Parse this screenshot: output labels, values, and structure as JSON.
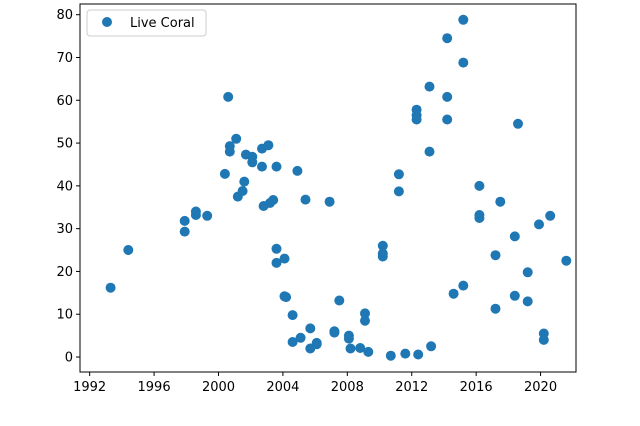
{
  "chart_data": {
    "type": "scatter",
    "title": "",
    "xlabel": "",
    "ylabel": "",
    "xlim": [
      1991.4,
      2022.2
    ],
    "ylim": [
      -3.5,
      82.5
    ],
    "x_ticks": [
      1992,
      1996,
      2000,
      2004,
      2008,
      2012,
      2016,
      2020
    ],
    "y_ticks": [
      0,
      10,
      20,
      30,
      40,
      50,
      60,
      70,
      80
    ],
    "grid": false,
    "legend_position": "top-left",
    "marker_color": "#1f77b4",
    "series": [
      {
        "name": "Live Coral",
        "points": [
          [
            1993.3,
            16.2
          ],
          [
            1994.4,
            25.0
          ],
          [
            1997.9,
            31.8
          ],
          [
            1997.9,
            29.3
          ],
          [
            1998.6,
            34.0
          ],
          [
            1998.6,
            33.2
          ],
          [
            1999.3,
            33.0
          ],
          [
            2000.4,
            42.8
          ],
          [
            2000.6,
            60.8
          ],
          [
            2000.7,
            48.0
          ],
          [
            2000.7,
            49.3
          ],
          [
            2001.1,
            51.0
          ],
          [
            2001.2,
            37.5
          ],
          [
            2001.5,
            38.8
          ],
          [
            2001.6,
            41.0
          ],
          [
            2001.7,
            47.3
          ],
          [
            2002.1,
            46.8
          ],
          [
            2002.1,
            45.5
          ],
          [
            2002.7,
            48.7
          ],
          [
            2002.7,
            44.5
          ],
          [
            2002.8,
            35.3
          ],
          [
            2003.1,
            49.5
          ],
          [
            2003.2,
            36.0
          ],
          [
            2003.4,
            36.7
          ],
          [
            2003.6,
            44.5
          ],
          [
            2003.6,
            25.3
          ],
          [
            2003.6,
            22.0
          ],
          [
            2004.1,
            23.0
          ],
          [
            2004.1,
            14.2
          ],
          [
            2004.2,
            14.0
          ],
          [
            2004.6,
            9.8
          ],
          [
            2004.6,
            3.5
          ],
          [
            2004.9,
            43.5
          ],
          [
            2005.1,
            4.5
          ],
          [
            2005.4,
            36.8
          ],
          [
            2005.7,
            6.7
          ],
          [
            2005.7,
            2.0
          ],
          [
            2006.1,
            3.3
          ],
          [
            2006.1,
            3.0
          ],
          [
            2006.9,
            36.3
          ],
          [
            2007.2,
            6.0
          ],
          [
            2007.2,
            5.7
          ],
          [
            2007.5,
            13.2
          ],
          [
            2008.1,
            5.0
          ],
          [
            2008.1,
            4.3
          ],
          [
            2008.2,
            2.0
          ],
          [
            2008.8,
            2.1
          ],
          [
            2009.1,
            10.2
          ],
          [
            2009.1,
            8.5
          ],
          [
            2009.3,
            1.2
          ],
          [
            2010.2,
            26.0
          ],
          [
            2010.2,
            24.2
          ],
          [
            2010.2,
            23.5
          ],
          [
            2010.7,
            0.3
          ],
          [
            2011.2,
            42.7
          ],
          [
            2011.2,
            38.7
          ],
          [
            2011.6,
            0.8
          ],
          [
            2012.3,
            57.8
          ],
          [
            2012.3,
            56.5
          ],
          [
            2012.3,
            55.5
          ],
          [
            2012.4,
            0.6
          ],
          [
            2013.1,
            63.2
          ],
          [
            2013.1,
            48.0
          ],
          [
            2013.2,
            2.5
          ],
          [
            2014.2,
            74.5
          ],
          [
            2014.2,
            60.8
          ],
          [
            2014.2,
            55.5
          ],
          [
            2014.6,
            14.8
          ],
          [
            2015.2,
            78.8
          ],
          [
            2015.2,
            68.8
          ],
          [
            2015.2,
            16.7
          ],
          [
            2016.2,
            40.0
          ],
          [
            2016.2,
            33.2
          ],
          [
            2016.2,
            32.5
          ],
          [
            2017.2,
            23.8
          ],
          [
            2017.2,
            11.3
          ],
          [
            2017.5,
            36.3
          ],
          [
            2018.4,
            28.2
          ],
          [
            2018.4,
            14.3
          ],
          [
            2018.6,
            54.5
          ],
          [
            2019.2,
            19.8
          ],
          [
            2019.2,
            13.0
          ],
          [
            2019.9,
            31.0
          ],
          [
            2020.2,
            5.5
          ],
          [
            2020.2,
            4.0
          ],
          [
            2020.6,
            33.0
          ],
          [
            2021.6,
            22.5
          ]
        ]
      }
    ]
  }
}
